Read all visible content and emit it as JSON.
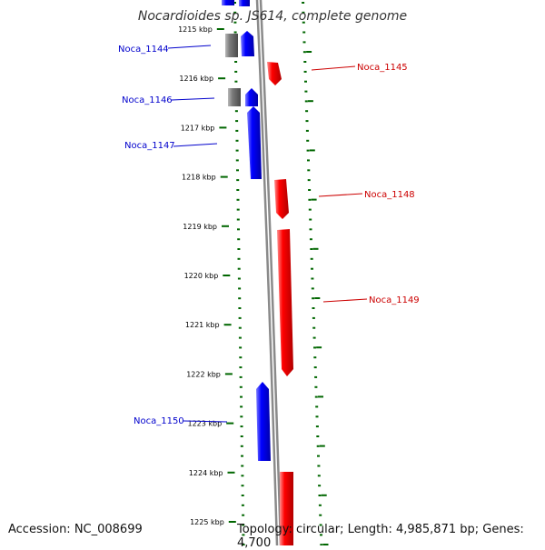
{
  "title": "Nocardioides sp. JS614, complete genome",
  "footer": {
    "accession": "Accession: NC_008699",
    "topology": "Topology: circular; Length: 4,985,871 bp; Genes: 4,700"
  },
  "colors": {
    "forward_gene": "#ff0000",
    "reverse_gene": "#0000ff",
    "other_gene": "#808080",
    "forward_label": "#cc0000",
    "reverse_label": "#0000cc",
    "tick": "#006600",
    "backbone": "#8a8a8a"
  },
  "scale": {
    "labels": [
      "1215 kbp",
      "1216 kbp",
      "1217 kbp",
      "1218 kbp",
      "1219 kbp",
      "1220 kbp",
      "1221 kbp",
      "1222 kbp",
      "1223 kbp",
      "1224 kbp",
      "1225 kbp"
    ]
  },
  "genes": [
    {
      "name": "Noca_1144",
      "strand": "reverse"
    },
    {
      "name": "Noca_1145",
      "strand": "forward"
    },
    {
      "name": "Noca_1146",
      "strand": "reverse"
    },
    {
      "name": "Noca_1147",
      "strand": "reverse"
    },
    {
      "name": "Noca_1148",
      "strand": "forward"
    },
    {
      "name": "Noca_1149",
      "strand": "forward"
    },
    {
      "name": "Noca_1150",
      "strand": "reverse"
    }
  ]
}
